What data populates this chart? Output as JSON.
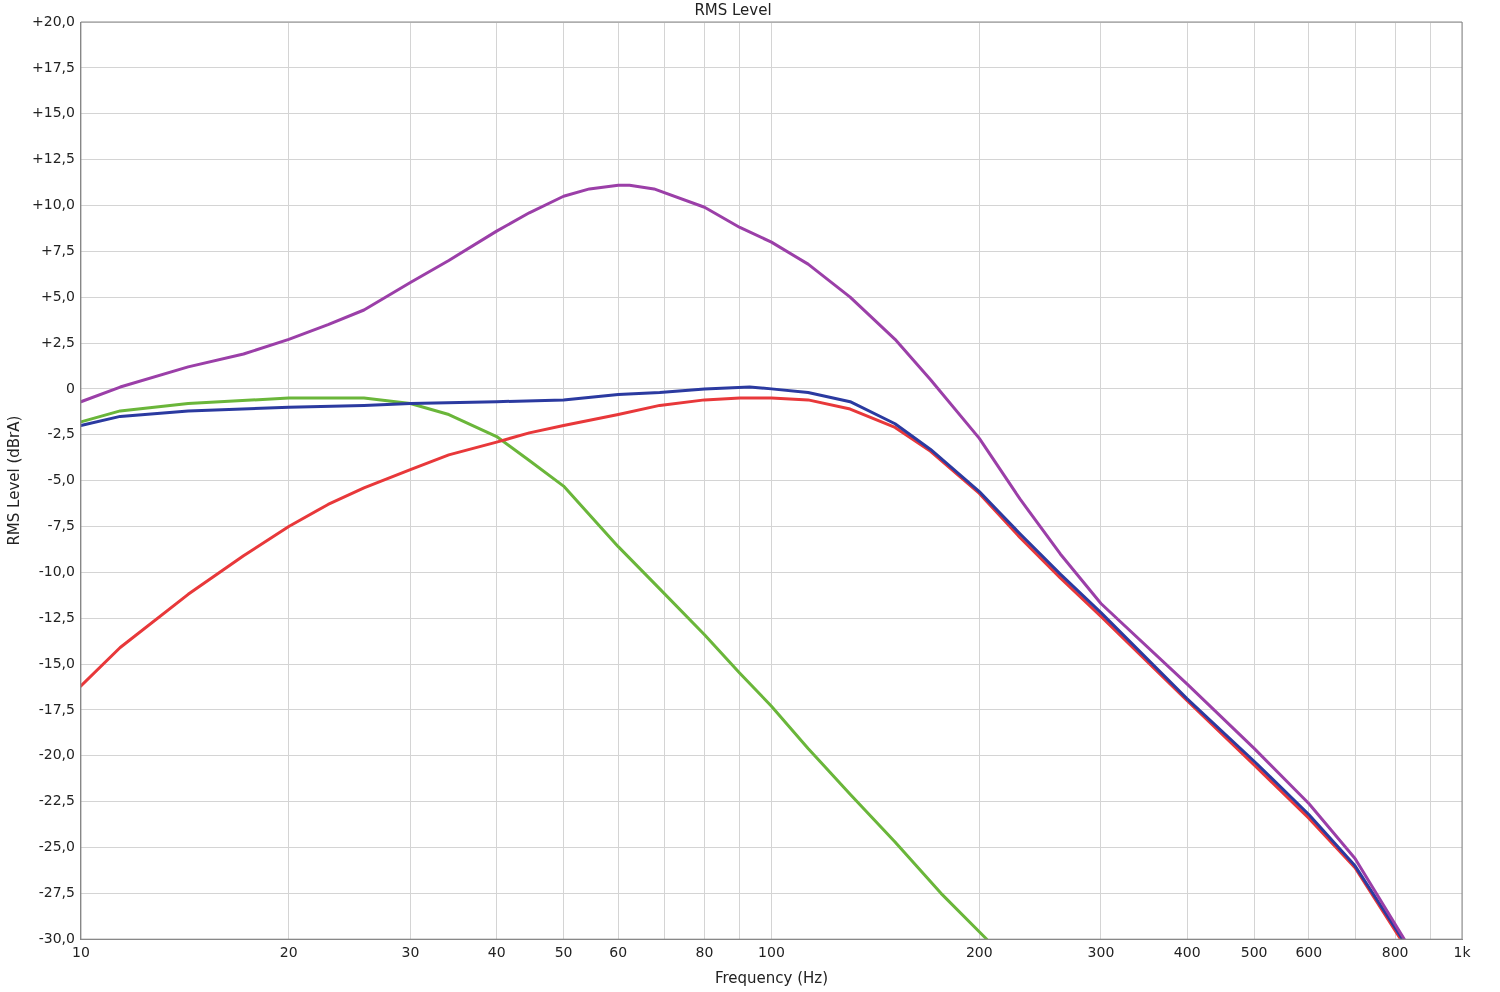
{
  "chart_data": {
    "type": "line",
    "title": "RMS Level",
    "xlabel": "Frequency (Hz)",
    "ylabel": "RMS Level (dBrA)",
    "log": "x",
    "grid": true,
    "legend": false,
    "marker": "none",
    "line_style": "solid",
    "xlim": [
      10,
      1000
    ],
    "xticks": [
      10,
      20,
      30,
      40,
      50,
      60,
      {
        "value": 70,
        "label": null
      },
      80,
      {
        "value": 90,
        "label": null
      },
      100,
      200,
      300,
      400,
      500,
      600,
      {
        "value": 700,
        "label": null
      },
      800,
      {
        "value": 900,
        "label": null
      },
      {
        "value": 1000,
        "label": "1k"
      }
    ],
    "ylim": [
      -30,
      20
    ],
    "yticks": [
      {
        "value": 20,
        "label": "+20,0"
      },
      {
        "value": 17.5,
        "label": "+17,5"
      },
      {
        "value": 15,
        "label": "+15,0"
      },
      {
        "value": 12.5,
        "label": "+12,5"
      },
      {
        "value": 10,
        "label": "+10,0"
      },
      {
        "value": 7.5,
        "label": "+7,5"
      },
      {
        "value": 5,
        "label": "+5,0"
      },
      {
        "value": 2.5,
        "label": "+2,5"
      },
      0,
      {
        "value": -2.5,
        "label": "-2,5"
      },
      {
        "value": -5,
        "label": "-5,0"
      },
      {
        "value": -7.5,
        "label": "-7,5"
      },
      {
        "value": -10,
        "label": "-10,0"
      },
      {
        "value": -12.5,
        "label": "-12,5"
      },
      {
        "value": -15,
        "label": "-15,0"
      },
      {
        "value": -17.5,
        "label": "-17,5"
      },
      {
        "value": -20,
        "label": "-20,0"
      },
      {
        "value": -22.5,
        "label": "-22,5"
      },
      {
        "value": -25,
        "label": "-25,0"
      },
      {
        "value": -27.5,
        "label": "-27,5"
      },
      {
        "value": -30,
        "label": "-30,0"
      }
    ],
    "series": [
      {
        "color": "#9b3fa8",
        "x": [
          10,
          11.4,
          14.3,
          17.2,
          20,
          22.8,
          25.7,
          30,
          34.1,
          40,
          44.6,
          50,
          54.5,
          60,
          62.3,
          67.6,
          80,
          90,
          100,
          113,
          130,
          151,
          170,
          200,
          229,
          262,
          300,
          400,
          500,
          600,
          700,
          825
        ],
        "values": [
          -0.7,
          0.1,
          1.2,
          1.9,
          2.7,
          3.5,
          4.3,
          5.8,
          7.0,
          8.6,
          9.6,
          10.5,
          10.9,
          11.1,
          11.1,
          10.9,
          9.9,
          8.8,
          8.0,
          6.8,
          5.0,
          2.7,
          0.5,
          -2.7,
          -6.0,
          -9.0,
          -11.7,
          -16.1,
          -19.6,
          -22.6,
          -25.6,
          -30.0
        ]
      },
      {
        "color": "#2b3aa0",
        "x": [
          10,
          11.4,
          14.3,
          20,
          25.7,
          30,
          40,
          50,
          60,
          68.9,
          80,
          93,
          100,
          113,
          130,
          151,
          170,
          200,
          229,
          262,
          300,
          400,
          500,
          600,
          700,
          820
        ],
        "values": [
          -2.0,
          -1.5,
          -1.2,
          -1.0,
          -0.9,
          -0.8,
          -0.7,
          -0.6,
          -0.3,
          -0.2,
          0.0,
          0.1,
          0.0,
          -0.2,
          -0.7,
          -1.9,
          -3.3,
          -5.6,
          -7.9,
          -10.1,
          -12.2,
          -16.9,
          -20.3,
          -23.2,
          -26.0,
          -30.0
        ]
      },
      {
        "color": "#e8383a",
        "x": [
          10,
          11.4,
          14.3,
          17.2,
          20,
          22.8,
          25.7,
          30,
          34.1,
          40,
          44.6,
          50,
          60,
          68.9,
          80,
          90,
          100,
          113,
          130,
          151,
          170,
          200,
          229,
          262,
          300,
          400,
          500,
          600,
          700,
          815
        ],
        "values": [
          -16.2,
          -14.1,
          -11.2,
          -9.1,
          -7.5,
          -6.3,
          -5.4,
          -4.4,
          -3.6,
          -2.9,
          -2.4,
          -2.0,
          -1.4,
          -0.9,
          -0.6,
          -0.5,
          -0.5,
          -0.6,
          -1.1,
          -2.1,
          -3.4,
          -5.7,
          -8.1,
          -10.3,
          -12.4,
          -17.0,
          -20.5,
          -23.4,
          -26.1,
          -30.0
        ]
      },
      {
        "color": "#6ab63a",
        "x": [
          10,
          11.4,
          14.3,
          20,
          25.7,
          30,
          34.1,
          40,
          44.6,
          50,
          60,
          68.9,
          80,
          90,
          100,
          113,
          130,
          151,
          176,
          205
        ],
        "values": [
          -1.8,
          -1.2,
          -0.8,
          -0.5,
          -0.5,
          -0.8,
          -1.4,
          -2.6,
          -3.9,
          -5.3,
          -8.6,
          -10.9,
          -13.4,
          -15.5,
          -17.3,
          -19.6,
          -22.1,
          -24.7,
          -27.5,
          -30.0
        ]
      }
    ]
  }
}
